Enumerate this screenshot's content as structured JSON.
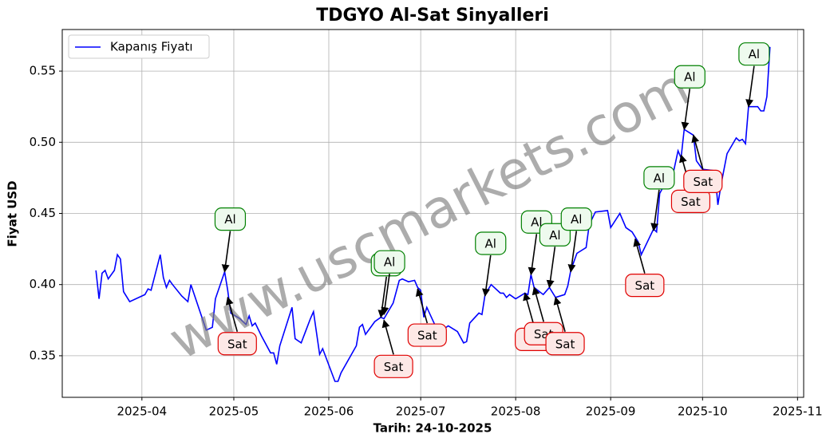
{
  "chart_data": {
    "type": "line",
    "title": "TDGYO Al-Sat Sinyalleri",
    "x_label": "Tarih: 24-10-2025",
    "y_label": "Fiyat USD",
    "watermark": "www.uscmarkets.com",
    "xlim": [
      "2025-03-06",
      "2025-11-03"
    ],
    "xticks": [
      "2025-04",
      "2025-05",
      "2025-06",
      "2025-07",
      "2025-08",
      "2025-09",
      "2025-10",
      "2025-11"
    ],
    "ylim": [
      0.3208,
      0.5792
    ],
    "yticks": [
      0.35,
      {
        "value": 0.4,
        "label": "0.40"
      },
      0.45,
      {
        "value": 0.5,
        "label": "0.50"
      },
      0.55
    ],
    "grid": true,
    "legend": "upper left",
    "series": [
      {
        "name": "Kapanış Fiyatı",
        "color": "#0000ff",
        "x": [
          "2025-03-17",
          "2025-03-18",
          "2025-03-19",
          "2025-03-20",
          "2025-03-21",
          "2025-03-23",
          "2025-03-24",
          "2025-03-25",
          "2025-03-26",
          "2025-03-28",
          "2025-04-02",
          "2025-04-03",
          "2025-04-04",
          "2025-04-07",
          "2025-04-08",
          "2025-04-09",
          "2025-04-10",
          "2025-04-11",
          "2025-04-14",
          "2025-04-16",
          "2025-04-17",
          "2025-04-22",
          "2025-04-24",
          "2025-04-25",
          "2025-04-28",
          "2025-04-29",
          "2025-04-30",
          "2025-05-03",
          "2025-05-05",
          "2025-05-06",
          "2025-05-07",
          "2025-05-08",
          "2025-05-10",
          "2025-05-13",
          "2025-05-14",
          "2025-05-15",
          "2025-05-16",
          "2025-05-20",
          "2025-05-21",
          "2025-05-23",
          "2025-05-26",
          "2025-05-27",
          "2025-05-29",
          "2025-05-30",
          "2025-06-03",
          "2025-06-04",
          "2025-06-05",
          "2025-06-10",
          "2025-06-11",
          "2025-06-12",
          "2025-06-13",
          "2025-06-16",
          "2025-06-18",
          "2025-06-19",
          "2025-06-22",
          "2025-06-24",
          "2025-06-25",
          "2025-06-27",
          "2025-06-29",
          "2025-06-30",
          "2025-07-01",
          "2025-07-02",
          "2025-07-03",
          "2025-07-06",
          "2025-07-08",
          "2025-07-10",
          "2025-07-13",
          "2025-07-15",
          "2025-07-16",
          "2025-07-17",
          "2025-07-20",
          "2025-07-21",
          "2025-07-22",
          "2025-07-24",
          "2025-07-27",
          "2025-07-28",
          "2025-07-29",
          "2025-07-30",
          "2025-08-01",
          "2025-08-04",
          "2025-08-05",
          "2025-08-06",
          "2025-08-07",
          "2025-08-10",
          "2025-08-12",
          "2025-08-14",
          "2025-08-17",
          "2025-08-18",
          "2025-08-19",
          "2025-08-21",
          "2025-08-24",
          "2025-08-25",
          "2025-08-27",
          "2025-08-31",
          "2025-09-01",
          "2025-09-04",
          "2025-09-06",
          "2025-09-08",
          "2025-09-10",
          "2025-09-11",
          "2025-09-13",
          "2025-09-15",
          "2025-09-16",
          "2025-09-17",
          "2025-09-19",
          "2025-09-21",
          "2025-09-23",
          "2025-09-24",
          "2025-09-25",
          "2025-09-28",
          "2025-09-29",
          "2025-10-01",
          "2025-10-05",
          "2025-10-06",
          "2025-10-07",
          "2025-10-09",
          "2025-10-12",
          "2025-10-13",
          "2025-10-14",
          "2025-10-15",
          "2025-10-16",
          "2025-10-19",
          "2025-10-20",
          "2025-10-21",
          "2025-10-22",
          "2025-10-23"
        ],
        "values": [
          0.41,
          0.39,
          0.408,
          0.41,
          0.404,
          0.41,
          0.421,
          0.418,
          0.395,
          0.388,
          0.393,
          0.397,
          0.396,
          0.421,
          0.405,
          0.398,
          0.403,
          0.4,
          0.392,
          0.388,
          0.4,
          0.368,
          0.37,
          0.39,
          0.409,
          0.396,
          0.38,
          0.376,
          0.372,
          0.378,
          0.371,
          0.373,
          0.364,
          0.352,
          0.352,
          0.344,
          0.357,
          0.384,
          0.362,
          0.359,
          0.376,
          0.381,
          0.351,
          0.355,
          0.332,
          0.332,
          0.338,
          0.357,
          0.37,
          0.372,
          0.365,
          0.374,
          0.377,
          0.376,
          0.387,
          0.403,
          0.404,
          0.402,
          0.403,
          0.398,
          0.396,
          0.377,
          0.384,
          0.37,
          0.368,
          0.371,
          0.367,
          0.359,
          0.36,
          0.373,
          0.38,
          0.379,
          0.393,
          0.4,
          0.394,
          0.394,
          0.391,
          0.393,
          0.39,
          0.394,
          0.393,
          0.407,
          0.398,
          0.393,
          0.398,
          0.391,
          0.393,
          0.399,
          0.41,
          0.422,
          0.426,
          0.442,
          0.451,
          0.452,
          0.44,
          0.45,
          0.44,
          0.437,
          0.43,
          0.421,
          0.43,
          0.439,
          0.437,
          0.464,
          0.472,
          0.474,
          0.494,
          0.489,
          0.509,
          0.505,
          0.487,
          0.481,
          0.48,
          0.456,
          0.47,
          0.492,
          0.503,
          0.501,
          0.502,
          0.499,
          0.525,
          0.525,
          0.522,
          0.522,
          0.532,
          0.567
        ]
      }
    ],
    "annotations": [
      {
        "label": "Al",
        "x": "2025-04-28",
        "y": 0.409
      },
      {
        "label": "Sat",
        "x": "2025-04-29",
        "y": 0.391
      },
      {
        "label": "Al",
        "x": "2025-06-18",
        "y": 0.377
      },
      {
        "label": "Al",
        "x": "2025-06-19",
        "y": 0.379
      },
      {
        "label": "Sat",
        "x": "2025-06-19",
        "y": 0.375
      },
      {
        "label": "Sat",
        "x": "2025-06-30",
        "y": 0.397
      },
      {
        "label": "Al",
        "x": "2025-07-22",
        "y": 0.392
      },
      {
        "label": "Al",
        "x": "2025-08-06",
        "y": 0.407
      },
      {
        "label": "Sat",
        "x": "2025-08-04",
        "y": 0.394
      },
      {
        "label": "Sat",
        "x": "2025-08-07",
        "y": 0.398
      },
      {
        "label": "Al",
        "x": "2025-08-12",
        "y": 0.398
      },
      {
        "label": "Sat",
        "x": "2025-08-14",
        "y": 0.391
      },
      {
        "label": "Al",
        "x": "2025-08-19",
        "y": 0.409
      },
      {
        "label": "Sat",
        "x": "2025-09-09",
        "y": 0.432
      },
      {
        "label": "Al",
        "x": "2025-09-15",
        "y": 0.438
      },
      {
        "label": "Sat",
        "x": "2025-09-24",
        "y": 0.491
      },
      {
        "label": "Al",
        "x": "2025-09-25",
        "y": 0.509
      },
      {
        "label": "Sat",
        "x": "2025-09-28",
        "y": 0.505
      },
      {
        "label": "Al",
        "x": "2025-10-16",
        "y": 0.525
      }
    ]
  }
}
